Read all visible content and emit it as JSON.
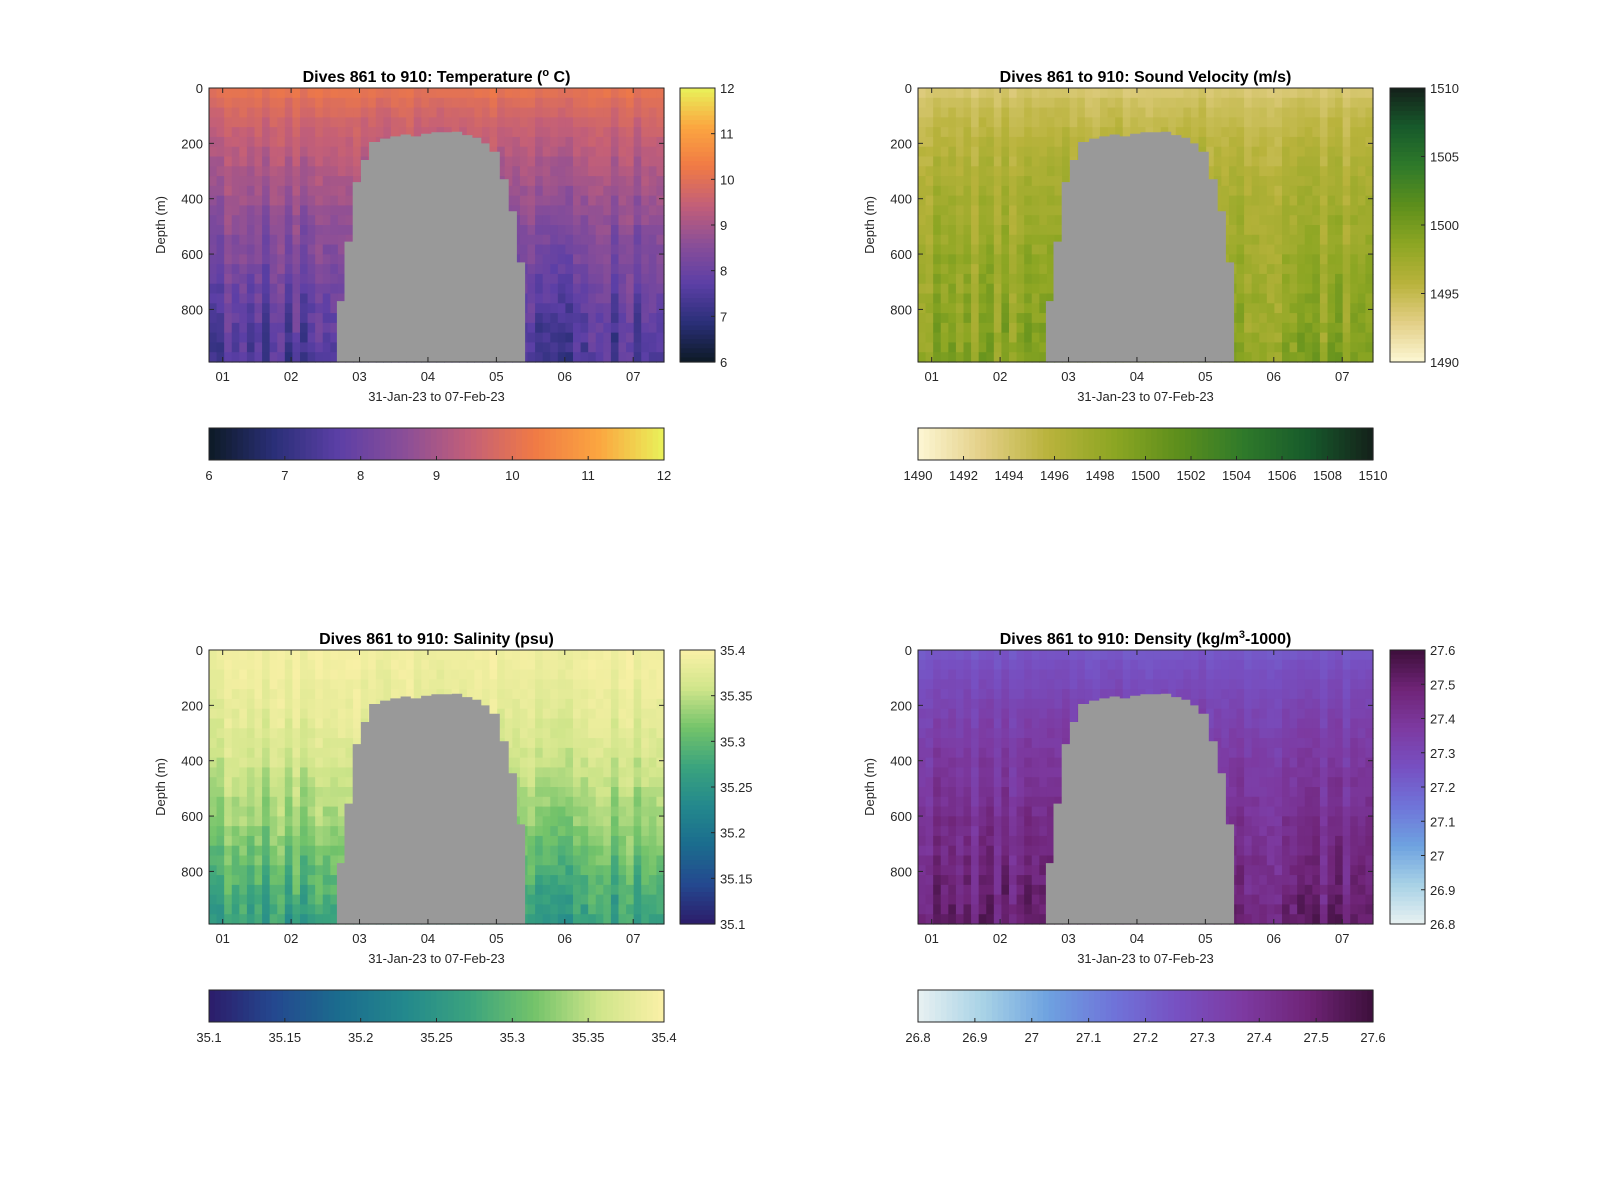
{
  "chart_data": [
    {
      "type": "heatmap",
      "title": "Dives 861 to 910: Temperature (",
      "title_unit": "o",
      "title_tail": " C)",
      "xlabel": "31-Jan-23 to 07-Feb-23",
      "ylabel": "Depth (m)",
      "x_ticks": [
        "01",
        "02",
        "03",
        "04",
        "05",
        "06",
        "07"
      ],
      "y_ticks": [
        0,
        200,
        400,
        600,
        800
      ],
      "ylim": [
        0,
        990
      ],
      "xlim_days": [
        0.8,
        7.45
      ],
      "colorbar": {
        "min": 6,
        "max": 12,
        "ticks": [
          "6",
          "7",
          "8",
          "9",
          "10",
          "11",
          "12"
        ],
        "h_ticks": [
          "6",
          "7",
          "8",
          "9",
          "10",
          "11",
          "12"
        ],
        "colors": [
          "#0d1a25",
          "#2a2f78",
          "#5c3fa6",
          "#8a4e98",
          "#c35f78",
          "#f07a45",
          "#fba640",
          "#e9f25a"
        ]
      },
      "profile": {
        "surface": 10.2,
        "bottom": 7.4,
        "falloff": 0.75
      },
      "gap": [
        {
          "day": 2.67,
          "top": 770
        },
        {
          "day": 2.78,
          "top": 555
        },
        {
          "day": 2.9,
          "top": 340
        },
        {
          "day": 3.02,
          "top": 260
        },
        {
          "day": 3.14,
          "top": 195
        },
        {
          "day": 3.3,
          "top": 183
        },
        {
          "day": 3.45,
          "top": 175
        },
        {
          "day": 3.6,
          "top": 168
        },
        {
          "day": 3.75,
          "top": 175
        },
        {
          "day": 3.9,
          "top": 165
        },
        {
          "day": 4.05,
          "top": 160
        },
        {
          "day": 4.2,
          "top": 160
        },
        {
          "day": 4.35,
          "top": 158
        },
        {
          "day": 4.5,
          "top": 170
        },
        {
          "day": 4.65,
          "top": 180
        },
        {
          "day": 4.78,
          "top": 200
        },
        {
          "day": 4.9,
          "top": 230
        },
        {
          "day": 5.05,
          "top": 330
        },
        {
          "day": 5.18,
          "top": 445
        },
        {
          "day": 5.3,
          "top": 630
        },
        {
          "day": 5.42,
          "top": 990
        }
      ]
    },
    {
      "type": "heatmap",
      "title": "Dives 861 to 910: Sound Velocity (m/s)",
      "xlabel": "31-Jan-23 to 07-Feb-23",
      "ylabel": "Depth (m)",
      "x_ticks": [
        "01",
        "02",
        "03",
        "04",
        "05",
        "06",
        "07"
      ],
      "y_ticks": [
        0,
        200,
        400,
        600,
        800
      ],
      "ylim": [
        0,
        990
      ],
      "xlim_days": [
        0.8,
        7.45
      ],
      "colorbar": {
        "min": 1490,
        "max": 1510,
        "ticks": [
          "1490",
          "1495",
          "1500",
          "1505",
          "1510"
        ],
        "h_ticks": [
          "1490",
          "1492",
          "1494",
          "1496",
          "1498",
          "1500",
          "1502",
          "1504",
          "1506",
          "1508",
          "1510"
        ],
        "colors": [
          "#fdf7d4",
          "#e3cf86",
          "#b9b33c",
          "#8da623",
          "#5d8f1c",
          "#2f7a2a",
          "#175a2b",
          "#14201a"
        ]
      },
      "profile": {
        "surface": 1493,
        "bottom": 1499,
        "falloff": 0.5
      },
      "gap": [
        {
          "day": 2.67,
          "top": 770
        },
        {
          "day": 2.78,
          "top": 555
        },
        {
          "day": 2.9,
          "top": 340
        },
        {
          "day": 3.02,
          "top": 260
        },
        {
          "day": 3.14,
          "top": 195
        },
        {
          "day": 3.3,
          "top": 183
        },
        {
          "day": 3.45,
          "top": 175
        },
        {
          "day": 3.6,
          "top": 168
        },
        {
          "day": 3.75,
          "top": 175
        },
        {
          "day": 3.9,
          "top": 165
        },
        {
          "day": 4.05,
          "top": 160
        },
        {
          "day": 4.2,
          "top": 160
        },
        {
          "day": 4.35,
          "top": 158
        },
        {
          "day": 4.5,
          "top": 170
        },
        {
          "day": 4.65,
          "top": 180
        },
        {
          "day": 4.78,
          "top": 200
        },
        {
          "day": 4.9,
          "top": 230
        },
        {
          "day": 5.05,
          "top": 330
        },
        {
          "day": 5.18,
          "top": 445
        },
        {
          "day": 5.3,
          "top": 630
        },
        {
          "day": 5.42,
          "top": 990
        }
      ]
    },
    {
      "type": "heatmap",
      "title": "Dives 861 to 910: Salinity (psu)",
      "xlabel": "31-Jan-23 to 07-Feb-23",
      "ylabel": "Depth (m)",
      "x_ticks": [
        "01",
        "02",
        "03",
        "04",
        "05",
        "06",
        "07"
      ],
      "y_ticks": [
        0,
        200,
        400,
        600,
        800
      ],
      "ylim": [
        0,
        990
      ],
      "xlim_days": [
        0.8,
        7.45
      ],
      "colorbar": {
        "min": 35.1,
        "max": 35.4,
        "ticks": [
          "35.1",
          "35.15",
          "35.2",
          "35.25",
          "35.3",
          "35.35",
          "35.4"
        ],
        "h_ticks": [
          "35.1",
          "35.15",
          "35.2",
          "35.25",
          "35.3",
          "35.35",
          "35.4"
        ],
        "colors": [
          "#2c1c6a",
          "#24488f",
          "#1b6c8e",
          "#23888d",
          "#3aa37e",
          "#73c36a",
          "#cfe58a",
          "#fbf1a7"
        ]
      },
      "profile": {
        "surface": 35.39,
        "bottom": 35.26,
        "falloff": 1.6
      },
      "gap": [
        {
          "day": 2.67,
          "top": 770
        },
        {
          "day": 2.78,
          "top": 555
        },
        {
          "day": 2.9,
          "top": 340
        },
        {
          "day": 3.02,
          "top": 260
        },
        {
          "day": 3.14,
          "top": 195
        },
        {
          "day": 3.3,
          "top": 183
        },
        {
          "day": 3.45,
          "top": 175
        },
        {
          "day": 3.6,
          "top": 168
        },
        {
          "day": 3.75,
          "top": 175
        },
        {
          "day": 3.9,
          "top": 165
        },
        {
          "day": 4.05,
          "top": 160
        },
        {
          "day": 4.2,
          "top": 160
        },
        {
          "day": 4.35,
          "top": 158
        },
        {
          "day": 4.5,
          "top": 170
        },
        {
          "day": 4.65,
          "top": 180
        },
        {
          "day": 4.78,
          "top": 200
        },
        {
          "day": 4.9,
          "top": 230
        },
        {
          "day": 5.05,
          "top": 330
        },
        {
          "day": 5.18,
          "top": 445
        },
        {
          "day": 5.3,
          "top": 630
        },
        {
          "day": 5.42,
          "top": 990
        }
      ]
    },
    {
      "type": "heatmap",
      "title": "Dives 861 to 910: Density (kg/m",
      "title_unit": "3",
      "title_tail": "-1000)",
      "xlabel": "31-Jan-23 to 07-Feb-23",
      "ylabel": "Depth (m)",
      "x_ticks": [
        "01",
        "02",
        "03",
        "04",
        "05",
        "06",
        "07"
      ],
      "y_ticks": [
        0,
        200,
        400,
        600,
        800
      ],
      "ylim": [
        0,
        990
      ],
      "xlim_days": [
        0.8,
        7.45
      ],
      "colorbar": {
        "min": 26.8,
        "max": 27.6,
        "ticks": [
          "26.8",
          "26.9",
          "27",
          "27.1",
          "27.2",
          "27.3",
          "27.4",
          "27.5",
          "27.6"
        ],
        "h_ticks": [
          "26.8",
          "26.9",
          "27",
          "27.1",
          "27.2",
          "27.3",
          "27.4",
          "27.5",
          "27.6"
        ],
        "colors": [
          "#e8f1f1",
          "#a8d2e6",
          "#6ea2e0",
          "#6f74d9",
          "#7750c2",
          "#7d3aa1",
          "#6f2477",
          "#3d0f3b"
        ]
      },
      "profile": {
        "surface": 27.22,
        "bottom": 27.5,
        "falloff": 0.7
      },
      "gap": [
        {
          "day": 2.67,
          "top": 770
        },
        {
          "day": 2.78,
          "top": 555
        },
        {
          "day": 2.9,
          "top": 340
        },
        {
          "day": 3.02,
          "top": 260
        },
        {
          "day": 3.14,
          "top": 195
        },
        {
          "day": 3.3,
          "top": 183
        },
        {
          "day": 3.45,
          "top": 175
        },
        {
          "day": 3.6,
          "top": 168
        },
        {
          "day": 3.75,
          "top": 175
        },
        {
          "day": 3.9,
          "top": 165
        },
        {
          "day": 4.05,
          "top": 160
        },
        {
          "day": 4.2,
          "top": 160
        },
        {
          "day": 4.35,
          "top": 158
        },
        {
          "day": 4.5,
          "top": 170
        },
        {
          "day": 4.65,
          "top": 180
        },
        {
          "day": 4.78,
          "top": 200
        },
        {
          "day": 4.9,
          "top": 230
        },
        {
          "day": 5.05,
          "top": 330
        },
        {
          "day": 5.18,
          "top": 445
        },
        {
          "day": 5.3,
          "top": 630
        },
        {
          "day": 5.42,
          "top": 990
        }
      ]
    }
  ],
  "colors": {
    "gap": "#999999",
    "axis": "#262626",
    "background": "#ffffff"
  }
}
